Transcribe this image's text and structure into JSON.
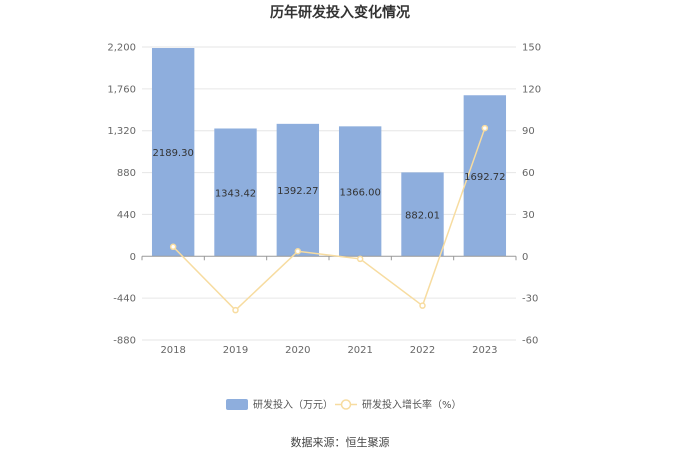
{
  "chart_data": {
    "type": "bar",
    "title": "历年研发投入变化情况",
    "categories": [
      "2018",
      "2019",
      "2020",
      "2021",
      "2022",
      "2023"
    ],
    "series": [
      {
        "name": "研发投入（万元）",
        "type": "bar",
        "axis": "left",
        "values": [
          2189.3,
          1343.42,
          1392.27,
          1366.0,
          882.01,
          1692.72
        ],
        "labels": [
          "2189.30",
          "1343.42",
          "1392.27",
          "1366.00",
          "882.01",
          "1692.72"
        ],
        "color": "#8eaedd"
      },
      {
        "name": "研发投入增长率（%）",
        "type": "line",
        "axis": "right",
        "values": [
          6.8,
          -38.6,
          3.6,
          -1.9,
          -35.4,
          91.9
        ],
        "color": "#f7dca0"
      }
    ],
    "y_left": {
      "ylim": [
        -880,
        2200
      ],
      "ticks": [
        -880,
        -440,
        0,
        440,
        880,
        1320,
        1760,
        2200
      ],
      "tick_labels": [
        "-880",
        "-440",
        "0",
        "440",
        "880",
        "1,320",
        "1,760",
        "2,200"
      ]
    },
    "y_right": {
      "ylim": [
        -60,
        150
      ],
      "ticks": [
        -60,
        -30,
        0,
        30,
        60,
        90,
        120,
        150
      ],
      "tick_labels": [
        "-60",
        "-30",
        "0",
        "30",
        "60",
        "90",
        "120",
        "150"
      ]
    },
    "grid": true,
    "legend_position": "bottom"
  },
  "footer": {
    "source": "数据来源：恒生聚源"
  }
}
